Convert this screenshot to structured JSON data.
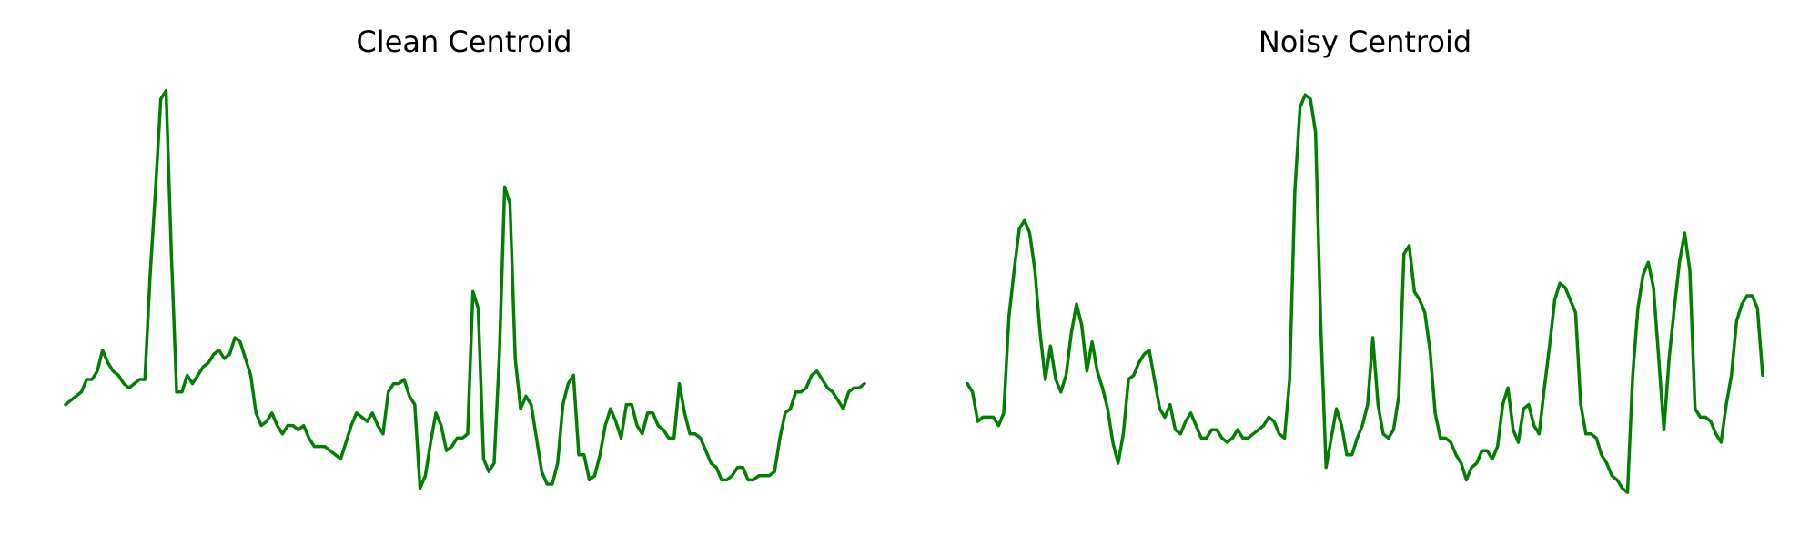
{
  "chart_data": [
    {
      "type": "line",
      "title": "Clean Centroid",
      "xlabel": "",
      "ylabel": "",
      "xlim": [
        0,
        150
      ],
      "ylim": [
        0,
        1
      ],
      "axes_visible": false,
      "grid": false,
      "legend": "none",
      "color": "#008000",
      "series": [
        {
          "values": [
            0.24,
            0.25,
            0.26,
            0.27,
            0.3,
            0.3,
            0.32,
            0.37,
            0.34,
            0.32,
            0.31,
            0.29,
            0.28,
            0.29,
            0.3,
            0.3,
            0.55,
            0.75,
            0.97,
            0.99,
            0.6,
            0.27,
            0.27,
            0.31,
            0.29,
            0.31,
            0.33,
            0.34,
            0.36,
            0.37,
            0.35,
            0.36,
            0.4,
            0.39,
            0.35,
            0.31,
            0.22,
            0.19,
            0.2,
            0.22,
            0.19,
            0.17,
            0.19,
            0.19,
            0.18,
            0.19,
            0.16,
            0.14,
            0.14,
            0.14,
            0.13,
            0.12,
            0.11,
            0.15,
            0.19,
            0.22,
            0.21,
            0.2,
            0.22,
            0.19,
            0.17,
            0.27,
            0.29,
            0.29,
            0.3,
            0.26,
            0.24,
            0.04,
            0.07,
            0.15,
            0.22,
            0.19,
            0.13,
            0.14,
            0.16,
            0.16,
            0.17,
            0.51,
            0.47,
            0.11,
            0.08,
            0.1,
            0.36,
            0.76,
            0.72,
            0.35,
            0.23,
            0.26,
            0.24,
            0.16,
            0.08,
            0.05,
            0.05,
            0.1,
            0.24,
            0.29,
            0.31,
            0.12,
            0.12,
            0.06,
            0.07,
            0.12,
            0.19,
            0.23,
            0.2,
            0.16,
            0.24,
            0.24,
            0.19,
            0.17,
            0.22,
            0.22,
            0.19,
            0.18,
            0.16,
            0.16,
            0.29,
            0.22,
            0.17,
            0.17,
            0.16,
            0.13,
            0.1,
            0.09,
            0.06,
            0.06,
            0.07,
            0.09,
            0.09,
            0.06,
            0.06,
            0.07,
            0.07,
            0.07,
            0.08,
            0.16,
            0.22,
            0.23,
            0.27,
            0.27,
            0.28,
            0.31,
            0.32,
            0.3,
            0.28,
            0.27,
            0.25,
            0.23,
            0.27,
            0.28,
            0.28,
            0.29
          ]
        }
      ]
    },
    {
      "type": "line",
      "title": "Noisy Centroid",
      "xlabel": "",
      "ylabel": "",
      "xlim": [
        0,
        150
      ],
      "ylim": [
        0,
        1
      ],
      "axes_visible": false,
      "grid": false,
      "legend": "none",
      "color": "#008000",
      "series": [
        {
          "values": [
            0.29,
            0.27,
            0.2,
            0.21,
            0.21,
            0.21,
            0.19,
            0.22,
            0.45,
            0.56,
            0.66,
            0.68,
            0.65,
            0.56,
            0.41,
            0.3,
            0.38,
            0.3,
            0.27,
            0.31,
            0.41,
            0.48,
            0.43,
            0.32,
            0.39,
            0.32,
            0.28,
            0.23,
            0.15,
            0.1,
            0.17,
            0.3,
            0.31,
            0.34,
            0.36,
            0.37,
            0.3,
            0.23,
            0.21,
            0.24,
            0.18,
            0.17,
            0.2,
            0.22,
            0.19,
            0.16,
            0.16,
            0.18,
            0.18,
            0.16,
            0.15,
            0.16,
            0.18,
            0.16,
            0.16,
            0.17,
            0.18,
            0.19,
            0.21,
            0.2,
            0.17,
            0.16,
            0.3,
            0.75,
            0.95,
            0.98,
            0.97,
            0.89,
            0.43,
            0.09,
            0.16,
            0.23,
            0.19,
            0.12,
            0.12,
            0.16,
            0.19,
            0.24,
            0.4,
            0.24,
            0.17,
            0.16,
            0.18,
            0.26,
            0.6,
            0.62,
            0.51,
            0.49,
            0.46,
            0.37,
            0.22,
            0.16,
            0.16,
            0.15,
            0.12,
            0.1,
            0.06,
            0.09,
            0.1,
            0.13,
            0.13,
            0.11,
            0.14,
            0.24,
            0.28,
            0.18,
            0.15,
            0.23,
            0.24,
            0.19,
            0.17,
            0.28,
            0.38,
            0.49,
            0.53,
            0.52,
            0.49,
            0.46,
            0.24,
            0.17,
            0.17,
            0.16,
            0.12,
            0.1,
            0.07,
            0.06,
            0.04,
            0.03,
            0.31,
            0.47,
            0.55,
            0.58,
            0.52,
            0.35,
            0.18,
            0.35,
            0.47,
            0.58,
            0.65,
            0.56,
            0.23,
            0.21,
            0.21,
            0.2,
            0.17,
            0.15,
            0.24,
            0.31,
            0.44,
            0.48,
            0.5,
            0.5,
            0.47,
            0.31
          ]
        }
      ]
    }
  ]
}
